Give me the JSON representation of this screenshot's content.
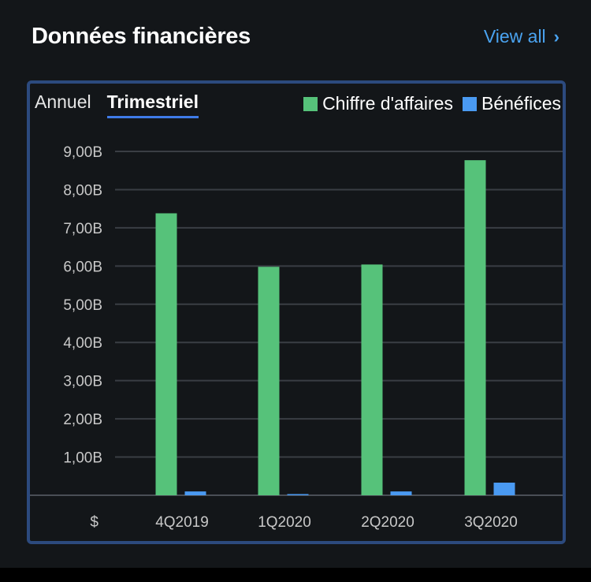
{
  "header": {
    "title": "Données financières",
    "view_all": "View all",
    "chevron": "›"
  },
  "tabs": [
    {
      "label": "Annuel",
      "active": false
    },
    {
      "label": "Trimestriel",
      "active": true
    }
  ],
  "colors": {
    "revenue": "#56c27a",
    "profit": "#4a9af2",
    "grid": "#3a3e44",
    "axis_text": "#c8c8c8"
  },
  "chart_data": {
    "type": "bar",
    "categories": [
      "4Q2019",
      "1Q2020",
      "2Q2020",
      "3Q2020"
    ],
    "series": [
      {
        "name": "Chiffre d'affaires",
        "values": [
          7.38,
          5.98,
          6.04,
          8.77
        ]
      },
      {
        "name": "Bénéfices",
        "values": [
          0.1,
          0.01,
          0.1,
          0.33
        ]
      }
    ],
    "y_ticks": [
      1,
      2,
      3,
      4,
      5,
      6,
      7,
      8,
      9
    ],
    "y_tick_labels": [
      "1,00B",
      "2,00B",
      "3,00B",
      "4,00B",
      "5,00B",
      "6,00B",
      "7,00B",
      "8,00B",
      "9,00B"
    ],
    "y_axis_label": "$",
    "ylim": [
      0,
      9
    ],
    "grid": true,
    "legend_position": "top-right"
  }
}
